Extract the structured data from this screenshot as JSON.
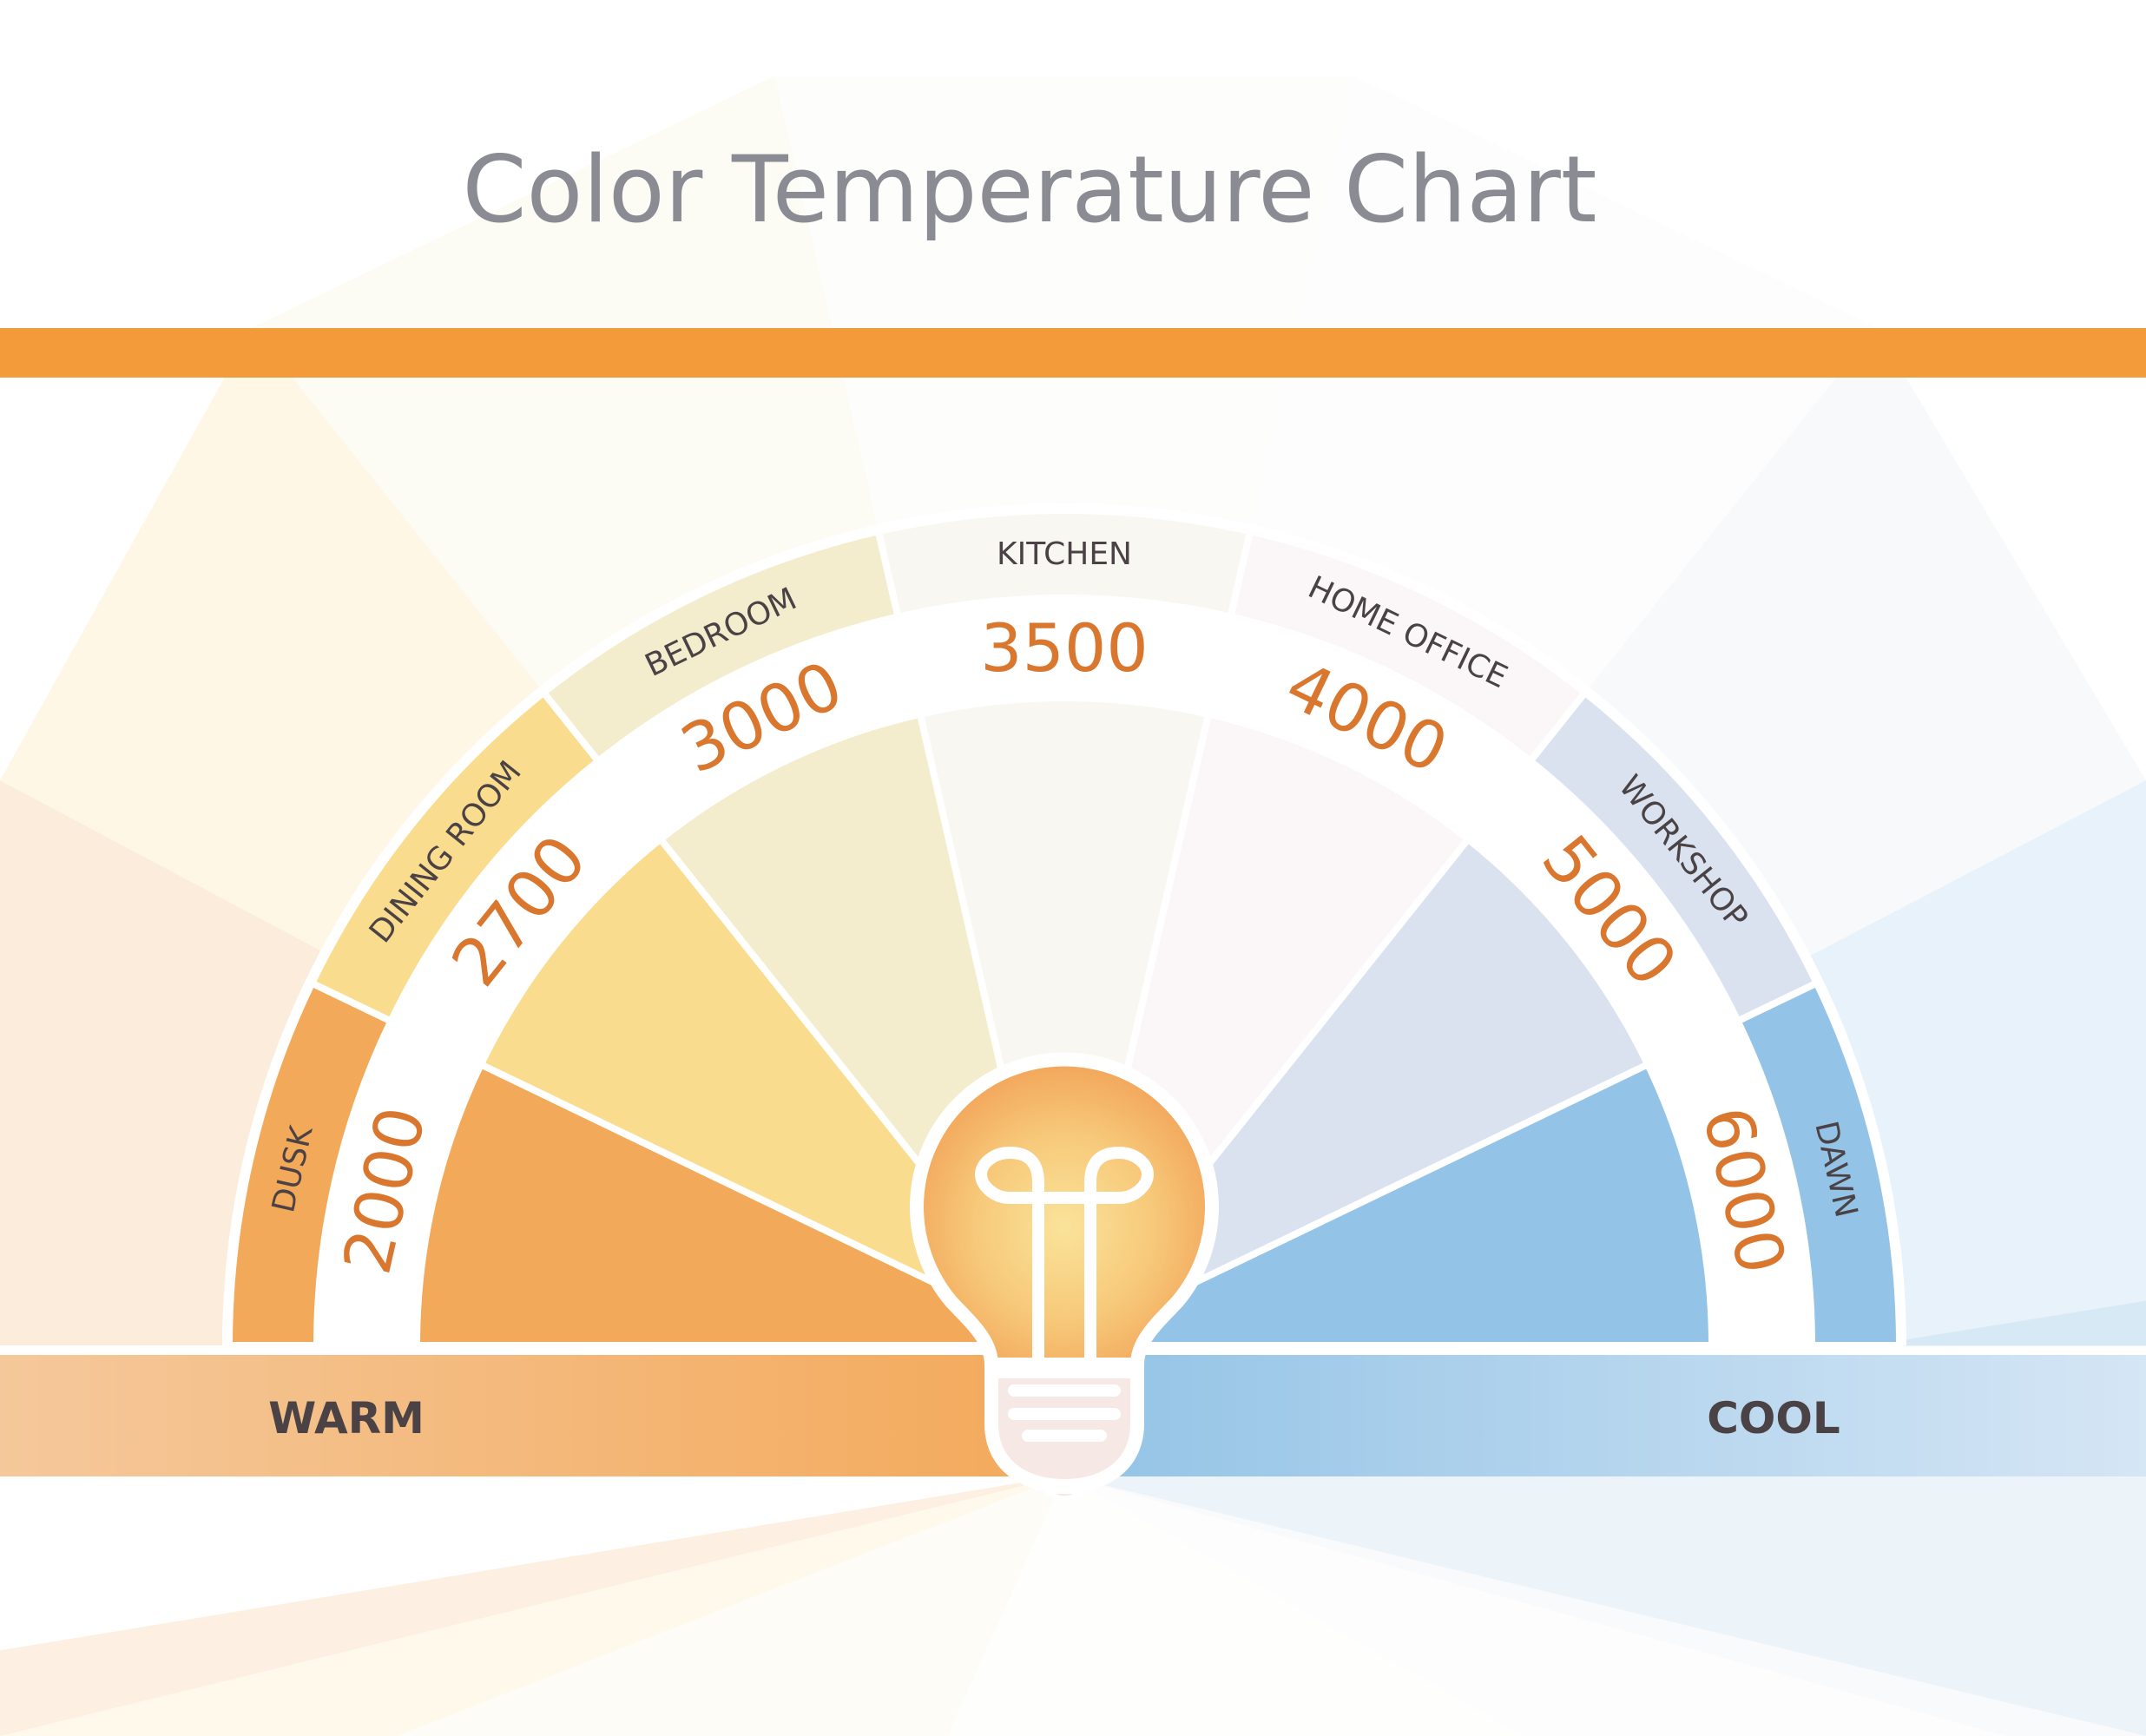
{
  "chart_data": {
    "type": "radial-gauge",
    "title": "Color Temperature Chart",
    "unit": "K",
    "segments": [
      {
        "label": "DUSK",
        "value": 2000,
        "color": "#F3A95A"
      },
      {
        "label": "DINING ROOM",
        "value": 2700,
        "color": "#F9DC8E"
      },
      {
        "label": "BEDROOM",
        "value": 3000,
        "color": "#F3EDCD"
      },
      {
        "label": "KITCHEN",
        "value": 3500,
        "color": "#F8F7F2"
      },
      {
        "label": "HOME OFFICE",
        "value": 4000,
        "color": "#FBF6F8"
      },
      {
        "label": "WORKSHOP",
        "value": 5000,
        "color": "#DAE2EF"
      },
      {
        "label": "DAWN",
        "value": 6000,
        "color": "#93C3E6"
      }
    ],
    "scale_labels": {
      "warm": "WARM",
      "cool": "COOL"
    }
  },
  "colors": {
    "accent_bar": "#F39A3B",
    "value_text": "#D9772F",
    "warm": "#F3A95A",
    "cool": "#93C3E6"
  },
  "icons": {
    "center": "light-bulb-icon"
  }
}
